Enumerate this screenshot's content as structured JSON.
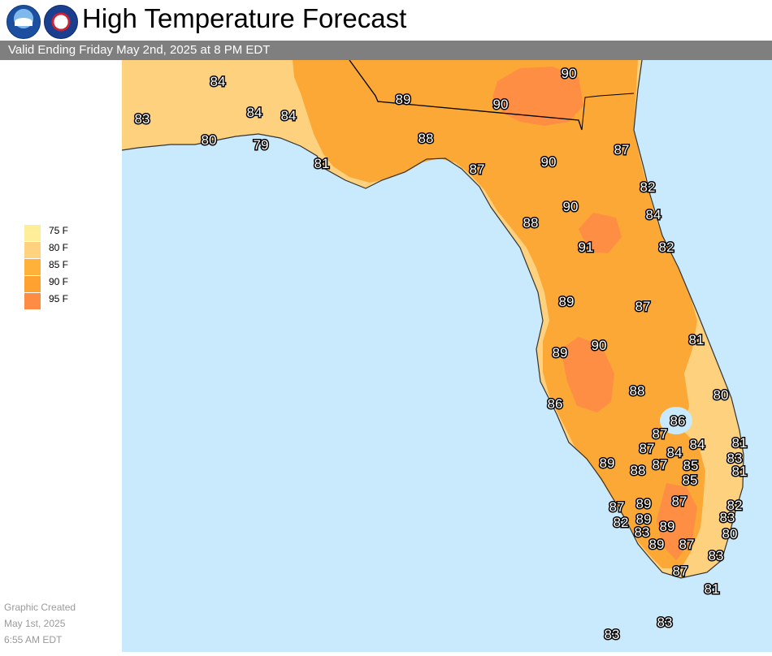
{
  "header": {
    "title": "High Temperature Forecast",
    "subtitle": "Valid Ending Friday May 2nd, 2025 at 8 PM EDT"
  },
  "legend": [
    {
      "label": "75 F",
      "color": "#ffee99"
    },
    {
      "label": "80 F",
      "color": "#ffd27f"
    },
    {
      "label": "85 F",
      "color": "#ffb13a"
    },
    {
      "label": "90 F",
      "color": "#ffa22f"
    },
    {
      "label": "95 F",
      "color": "#ff8c42"
    }
  ],
  "colors": {
    "water": "#c9e9fc",
    "land_80s": "#fed17f",
    "land_85s": "#fba836",
    "land_90s": "#ff8e45"
  },
  "temperatures": [
    "84",
    "83",
    "80",
    "84",
    "84",
    "79",
    "81",
    "89",
    "90",
    "90",
    "88",
    "87",
    "87",
    "90",
    "82",
    "90",
    "84",
    "88",
    "91",
    "82",
    "89",
    "87",
    "81",
    "89",
    "90",
    "86",
    "88",
    "80",
    "86",
    "87",
    "84",
    "87",
    "84",
    "83",
    "89",
    "88",
    "87",
    "85",
    "81",
    "85",
    "81",
    "87",
    "89",
    "82",
    "82",
    "89",
    "87",
    "83",
    "89",
    "83",
    "80",
    "89",
    "87",
    "83",
    "87",
    "81",
    "83",
    "83"
  ],
  "credit": {
    "line1": "Graphic Created",
    "line2": "May 1st, 2025",
    "line3": "6:55 AM EDT"
  }
}
